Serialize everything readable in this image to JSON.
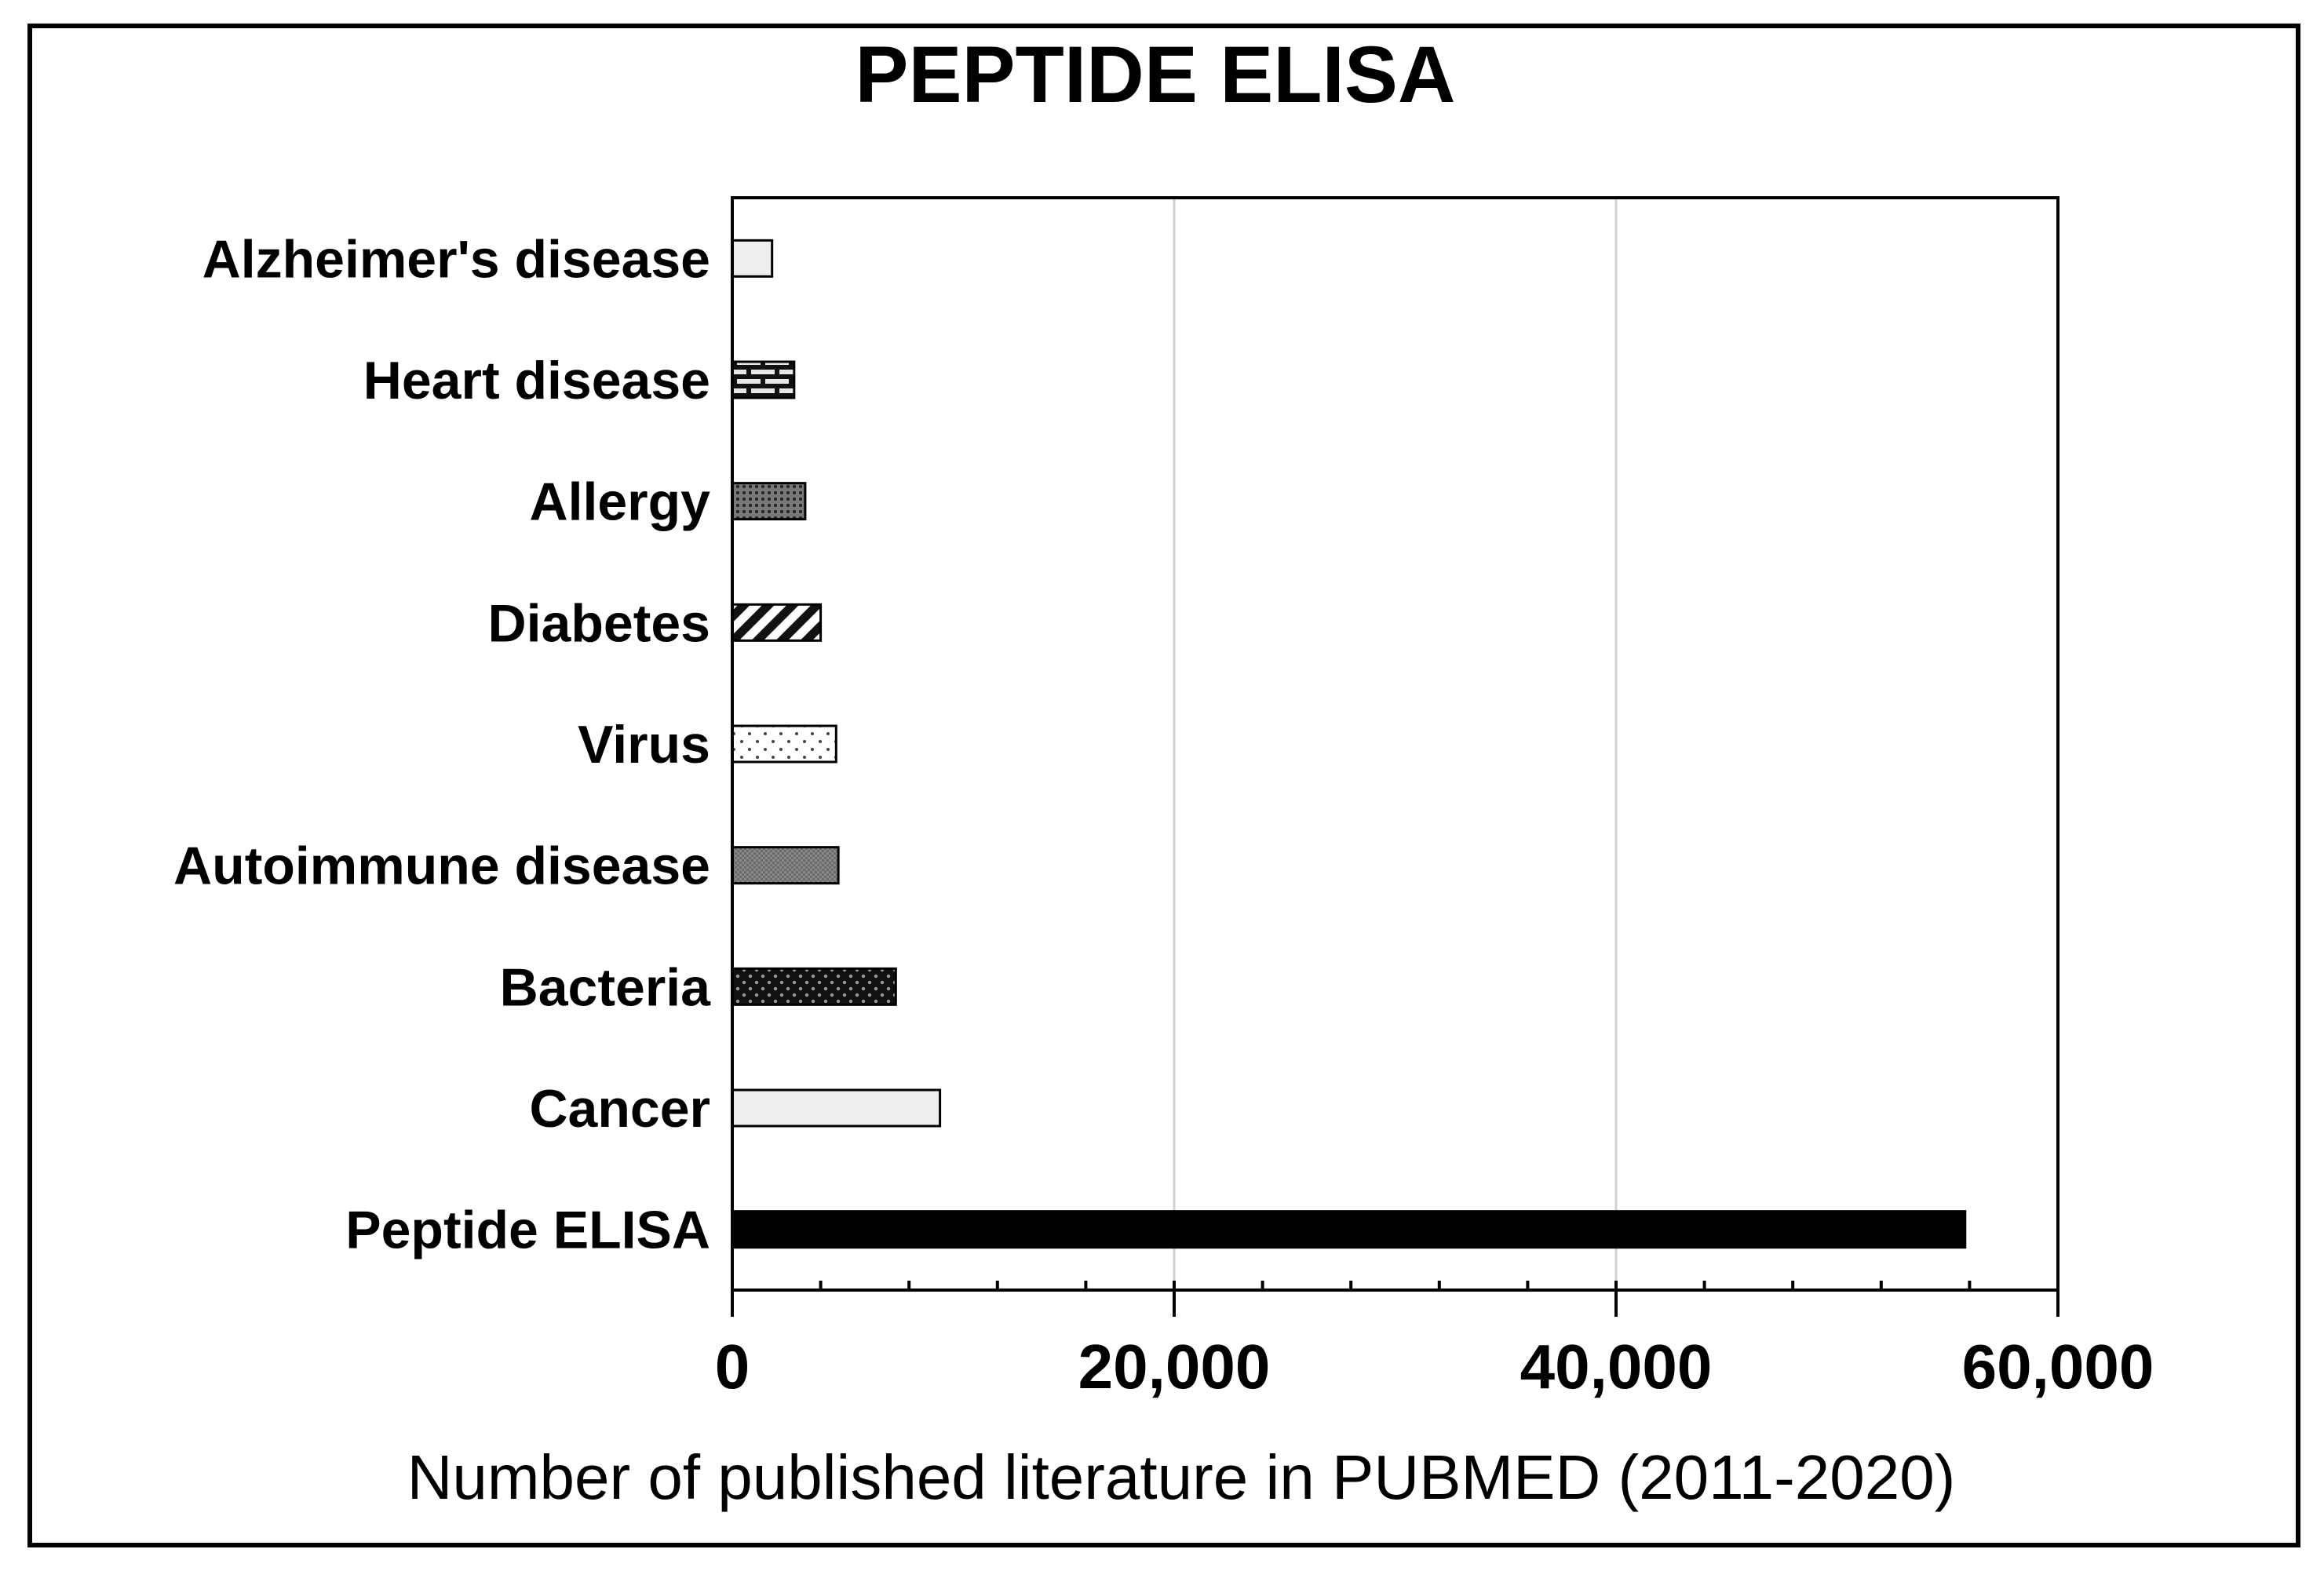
{
  "chart_data": {
    "type": "bar",
    "orientation": "horizontal",
    "title": "PEPTIDE ELISA",
    "xlabel": "Number of published literature in PUBMED (2011-2020)",
    "ylabel": "",
    "categories": [
      "Alzheimer's disease",
      "Heart disease",
      "Allergy",
      "Diabetes",
      "Virus",
      "Autoimmune disease",
      "Bacteria",
      "Cancer",
      "Peptide ELISA"
    ],
    "values": [
      1800,
      2800,
      3300,
      4000,
      4700,
      4800,
      7400,
      9400,
      55800
    ],
    "patterns": [
      "plain-light",
      "brick",
      "dots-dense",
      "diagonal-hatch",
      "dots-sparse",
      "dense-gray",
      "dots-on-black",
      "plain-light",
      "solid-black"
    ],
    "xlim": [
      0,
      60000
    ],
    "xticks": [
      0,
      20000,
      40000,
      60000
    ],
    "xtick_labels": [
      "0",
      "20,000",
      "40,000",
      "60,000"
    ],
    "minor_tick_step": 4000,
    "grid": "vertical major gridlines",
    "legend": "none"
  }
}
